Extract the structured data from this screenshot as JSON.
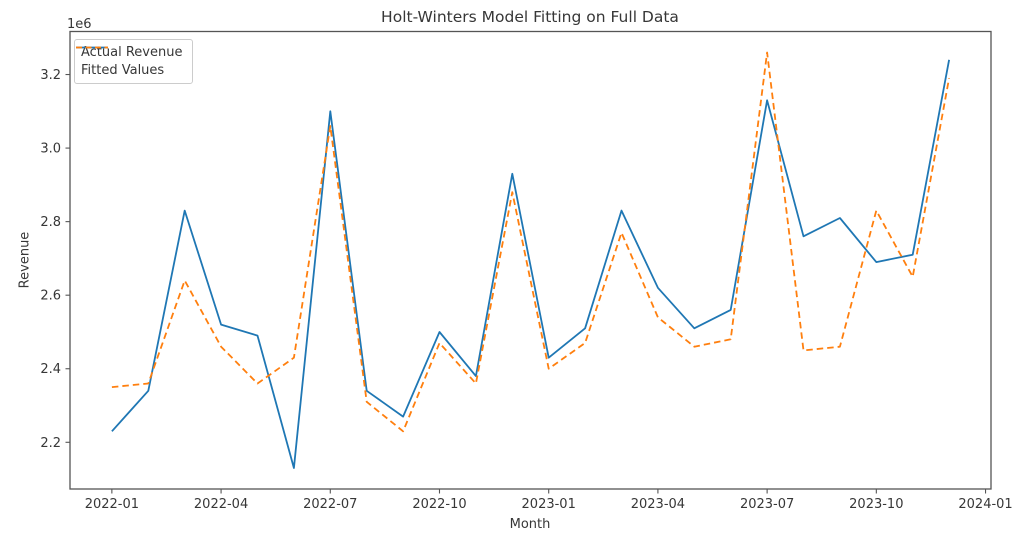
{
  "chart_data": {
    "type": "line",
    "title": "Holt-Winters Model Fitting on Full Data",
    "xlabel": "Month",
    "ylabel": "Revenue",
    "y_offset_label": "1e6",
    "grid": false,
    "legend_position": "upper left",
    "x": [
      "2022-01",
      "2022-02",
      "2022-03",
      "2022-04",
      "2022-05",
      "2022-06",
      "2022-07",
      "2022-08",
      "2022-09",
      "2022-10",
      "2022-11",
      "2022-12",
      "2023-01",
      "2023-02",
      "2023-03",
      "2023-04",
      "2023-05",
      "2023-06",
      "2023-07",
      "2023-08",
      "2023-09",
      "2023-10",
      "2023-11",
      "2023-12"
    ],
    "x_tick_labels": [
      "2022-01",
      "2022-04",
      "2022-07",
      "2022-10",
      "2023-01",
      "2023-04",
      "2023-07",
      "2023-10",
      "2024-01"
    ],
    "x_tick_indices": [
      0,
      3,
      6,
      9,
      12,
      15,
      18,
      21,
      24
    ],
    "x_index_lim": [
      -1.15,
      24.15
    ],
    "y_ticks": [
      2.2,
      2.4,
      2.6,
      2.8,
      3.0,
      3.2
    ],
    "ylim": [
      2.073,
      3.317
    ],
    "y_unit_multiplier": 1000000,
    "colors": {
      "actual": "#1f77b4",
      "fitted": "#ff7f0e",
      "spine": "#555555",
      "text": "#373737"
    },
    "series": [
      {
        "name": "Actual Revenue",
        "style": "solid",
        "color": "#1f77b4",
        "values": [
          2.23,
          2.34,
          2.83,
          2.52,
          2.49,
          2.13,
          3.1,
          2.34,
          2.27,
          2.5,
          2.38,
          2.93,
          2.43,
          2.51,
          2.83,
          2.62,
          2.51,
          2.56,
          3.13,
          2.76,
          2.81,
          2.69,
          2.71,
          3.24
        ]
      },
      {
        "name": "Fitted Values",
        "style": "dashed",
        "color": "#ff7f0e",
        "values": [
          2.35,
          2.36,
          2.64,
          2.46,
          2.36,
          2.43,
          3.06,
          2.31,
          2.23,
          2.47,
          2.36,
          2.88,
          2.4,
          2.47,
          2.77,
          2.54,
          2.46,
          2.48,
          3.26,
          2.45,
          2.46,
          2.83,
          2.65,
          3.19
        ]
      }
    ]
  }
}
